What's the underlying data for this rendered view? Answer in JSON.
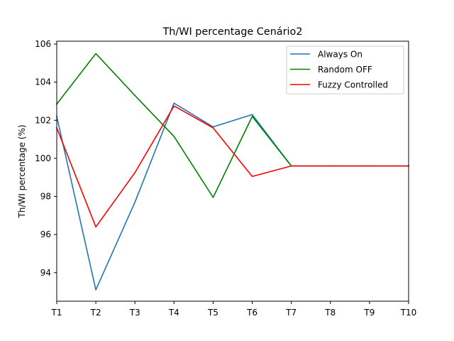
{
  "chart_data": {
    "type": "line",
    "title": "Th/WI percentage Cenário2",
    "xlabel": "",
    "ylabel": "Th/WI percentage (%)",
    "categories": [
      "T1",
      "T2",
      "T3",
      "T4",
      "T5",
      "T6",
      "T7",
      "T8",
      "T9",
      "T10"
    ],
    "yticks": [
      94,
      96,
      98,
      100,
      102,
      104,
      106
    ],
    "ylim": [
      92.5,
      106.15
    ],
    "grid": false,
    "legend_position": "top-right",
    "series": [
      {
        "name": "Always On",
        "color": "#1f77b4",
        "values": [
          102.2,
          93.1,
          97.7,
          102.9,
          101.65,
          102.3,
          99.6,
          99.6,
          99.6,
          99.6
        ]
      },
      {
        "name": "Random OFF",
        "color": "#008000",
        "values": [
          102.85,
          105.5,
          103.3,
          101.15,
          97.95,
          102.2,
          99.6,
          99.6,
          99.6,
          99.6
        ]
      },
      {
        "name": "Fuzzy Controlled",
        "color": "#ff0000",
        "values": [
          101.6,
          96.4,
          99.25,
          102.75,
          101.6,
          99.05,
          99.6,
          99.6,
          99.6,
          99.6
        ]
      }
    ]
  }
}
